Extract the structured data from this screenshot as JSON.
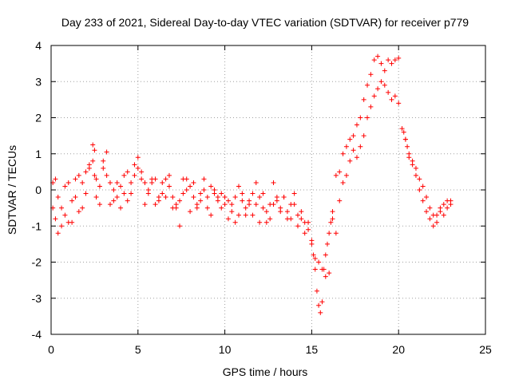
{
  "chart_data": {
    "type": "scatter",
    "title": "Day 233 of 2021, Sidereal Day-to-day VTEC variation (SDTVAR) for receiver p779",
    "xlabel": "GPS time / hours",
    "ylabel": "SDTVAR / TECUs",
    "xlim": [
      0,
      25
    ],
    "ylim": [
      -4,
      4
    ],
    "xticks": [
      0,
      5,
      10,
      15,
      20,
      25
    ],
    "yticks": [
      -4,
      -3,
      -2,
      -1,
      0,
      1,
      2,
      3,
      4
    ],
    "xtick_labels": [
      "0",
      "5",
      "10",
      "15",
      "20",
      "25"
    ],
    "ytick_labels": [
      "-4",
      "-3",
      "-2",
      "-1",
      "0",
      "1",
      "2",
      "3",
      "4"
    ],
    "grid": true,
    "legend": "none",
    "marker": "+",
    "color": "#ff0000",
    "series": [
      {
        "name": "p779",
        "x": [
          0.1,
          0.25,
          0.4,
          0.6,
          0.8,
          1.0,
          1.2,
          1.4,
          1.6,
          1.8,
          2.0,
          2.2,
          2.4,
          2.5,
          2.6,
          2.8,
          3.0,
          3.2,
          3.4,
          3.6,
          3.8,
          4.0,
          4.2,
          4.4,
          4.6,
          4.8,
          5.0,
          5.2,
          5.4,
          5.6,
          5.8,
          6.0,
          6.2,
          6.4,
          6.6,
          6.8,
          7.0,
          7.2,
          7.4,
          7.6,
          7.8,
          8.0,
          8.2,
          8.4,
          8.6,
          8.8,
          9.0,
          9.2,
          9.4,
          9.6,
          9.8,
          10.0,
          10.2,
          10.4,
          10.6,
          10.8,
          11.0,
          11.2,
          11.4,
          11.6,
          11.8,
          12.0,
          12.2,
          12.4,
          12.6,
          12.8,
          13.0,
          13.2,
          13.4,
          13.6,
          13.8,
          14.0,
          14.2,
          14.4,
          14.6,
          14.8,
          15.0,
          15.1,
          15.2,
          15.3,
          15.4,
          15.5,
          15.6,
          15.7,
          15.8,
          15.9,
          16.0,
          16.1,
          16.2,
          16.4,
          16.6,
          16.8,
          17.0,
          17.2,
          17.4,
          17.6,
          17.8,
          18.0,
          18.2,
          18.4,
          18.6,
          18.8,
          19.0,
          19.2,
          19.4,
          19.6,
          19.8,
          20.0,
          20.2,
          20.3,
          20.4,
          20.5,
          20.6,
          20.8,
          21.0,
          21.2,
          21.4,
          21.6,
          21.8,
          22.0,
          22.2,
          22.4,
          22.6,
          22.8,
          23.0,
          0.1,
          0.25,
          0.4,
          0.6,
          0.8,
          1.0,
          1.2,
          1.4,
          1.6,
          1.8,
          2.0,
          2.2,
          2.4,
          2.5,
          2.6,
          2.8,
          3.0,
          3.2,
          3.4,
          3.6,
          3.8,
          4.0,
          4.2,
          4.4,
          4.6,
          4.8,
          5.0,
          5.2,
          5.4,
          5.6,
          5.8,
          6.0,
          6.2,
          6.4,
          6.6,
          6.8,
          7.0,
          7.2,
          7.4,
          7.6,
          7.8,
          8.0,
          8.2,
          8.4,
          8.6,
          8.8,
          9.0,
          9.2,
          9.4,
          9.6,
          9.8,
          10.0,
          10.2,
          10.4,
          10.6,
          10.8,
          11.0,
          11.2,
          11.4,
          11.6,
          11.8,
          12.0,
          12.2,
          12.4,
          12.6,
          12.8,
          13.0,
          13.2,
          13.4,
          13.6,
          13.8,
          14.0,
          14.2,
          14.4,
          14.6,
          14.8,
          15.0,
          15.2,
          15.4,
          15.6,
          15.8,
          16.0,
          16.2,
          16.4,
          16.6,
          16.8,
          17.0,
          17.2,
          17.4,
          17.6,
          17.8,
          18.0,
          18.2,
          18.4,
          18.6,
          18.8,
          19.0,
          19.2,
          19.4,
          19.6,
          19.8,
          20.0,
          20.4,
          20.6,
          20.8,
          21.0,
          21.2,
          21.4,
          21.6,
          21.8,
          22.0,
          22.2,
          22.4,
          22.6,
          22.8,
          23.0
        ],
        "y": [
          0.2,
          -0.8,
          -1.2,
          -0.5,
          0.1,
          -0.9,
          -0.3,
          0.3,
          -0.6,
          0.2,
          0.5,
          0.7,
          1.25,
          1.1,
          0.3,
          -0.4,
          0.6,
          1.05,
          0.2,
          -0.3,
          -0.2,
          -0.5,
          -0.1,
          0.5,
          0.2,
          0.4,
          0.9,
          0.5,
          0.2,
          -0.1,
          0.3,
          -0.4,
          -0.2,
          0.2,
          0.3,
          0.1,
          -0.2,
          -0.5,
          -0.3,
          -0.1,
          0.3,
          0.1,
          -0.2,
          -0.5,
          -0.1,
          0.0,
          -0.2,
          0.1,
          0.0,
          -0.2,
          -0.1,
          -0.4,
          -0.3,
          -0.6,
          -0.2,
          0.1,
          -0.3,
          -0.7,
          -0.4,
          -0.1,
          0.2,
          -0.2,
          -0.5,
          -0.9,
          -0.4,
          0.2,
          -0.3,
          -0.5,
          -0.2,
          -0.6,
          -0.8,
          -0.1,
          -0.7,
          -0.6,
          -0.9,
          -1.1,
          -1.4,
          -1.8,
          -2.2,
          -2.8,
          -3.2,
          -3.4,
          -3.1,
          -2.2,
          -1.8,
          -1.5,
          -1.2,
          -0.9,
          -0.6,
          0.4,
          0.5,
          1.0,
          1.2,
          1.4,
          1.5,
          1.8,
          2.0,
          2.5,
          2.9,
          3.2,
          3.6,
          3.7,
          3.5,
          3.3,
          3.6,
          3.5,
          3.6,
          3.65,
          1.7,
          1.6,
          1.4,
          1.2,
          0.9,
          0.7,
          0.4,
          0.0,
          -0.3,
          -0.6,
          -0.8,
          -1.0,
          -0.7,
          -0.5,
          -0.4,
          -0.3,
          -0.3,
          -0.5,
          0.3,
          -0.2,
          -1.0,
          -0.7,
          0.2,
          -0.9,
          -0.2,
          0.4,
          -0.5,
          -0.1,
          0.6,
          0.8,
          0.4,
          -0.2,
          0.1,
          0.8,
          0.4,
          -0.4,
          0.0,
          0.2,
          0.1,
          0.4,
          -0.3,
          -0.1,
          0.7,
          0.6,
          0.3,
          -0.4,
          0.0,
          0.2,
          0.3,
          -0.3,
          -0.1,
          -0.2,
          0.4,
          -0.5,
          -0.4,
          -1.0,
          0.3,
          0.0,
          -0.6,
          0.2,
          -0.4,
          -0.3,
          0.3,
          -0.5,
          -0.7,
          -0.1,
          -0.3,
          -0.5,
          -0.2,
          -0.8,
          -0.4,
          -0.9,
          -0.7,
          -0.1,
          -0.5,
          -0.3,
          -0.7,
          -0.4,
          -0.9,
          -0.1,
          -0.6,
          -0.8,
          -0.4,
          -0.2,
          -0.6,
          -0.2,
          -0.8,
          -0.4,
          -0.4,
          -1.0,
          -0.8,
          -1.2,
          -0.9,
          -1.5,
          -1.9,
          -2.0,
          -2.2,
          -2.4,
          -2.3,
          -0.8,
          -1.2,
          -0.3,
          0.2,
          0.4,
          0.8,
          1.1,
          0.9,
          1.2,
          1.5,
          2.0,
          2.3,
          2.6,
          2.8,
          3.0,
          2.9,
          2.7,
          2.5,
          2.6,
          2.4,
          1.4,
          1.0,
          0.8,
          0.6,
          0.3,
          0.1,
          -0.2,
          -0.5,
          -0.7,
          -0.9,
          -0.6,
          -0.7,
          -0.5,
          -0.4
        ]
      }
    ]
  }
}
